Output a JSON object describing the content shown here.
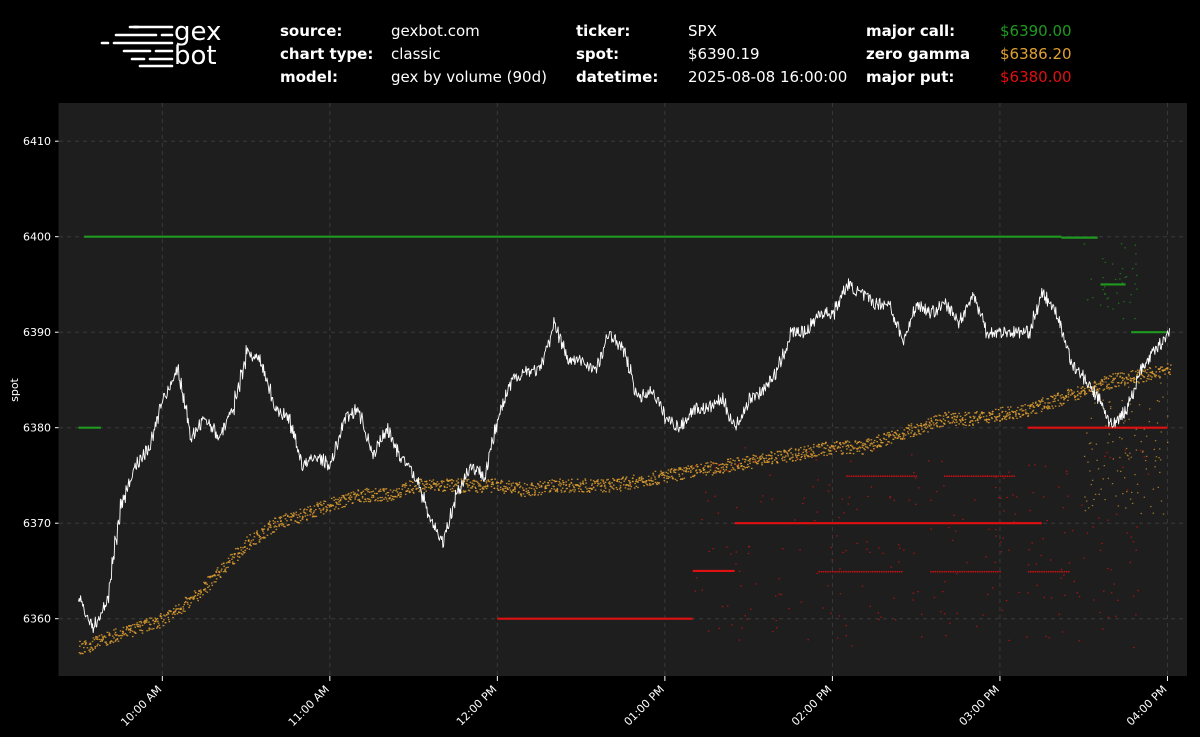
{
  "logo": {
    "line1": "gex",
    "line2": "bot"
  },
  "meta": {
    "col1": [
      {
        "key": "source:",
        "value": "gexbot.com"
      },
      {
        "key": "chart type:",
        "value": "classic"
      },
      {
        "key": "model:",
        "value": "gex by volume (90d)"
      }
    ],
    "col2": [
      {
        "key": "ticker:",
        "value": "SPX"
      },
      {
        "key": "spot:",
        "value": "$6390.19"
      },
      {
        "key": "datetime:",
        "value": "2025-08-08 16:00:00"
      }
    ],
    "col3": [
      {
        "key": "major call:",
        "value": "$6390.00",
        "color": "#1f9a1f"
      },
      {
        "key": "zero gamma",
        "value": "$6386.20",
        "color": "#e0a030"
      },
      {
        "key": "major put:",
        "value": "$6380.00",
        "color": "#e01010"
      }
    ]
  },
  "chart_data": {
    "type": "line",
    "title": "",
    "xlabel": "",
    "ylabel": "spot",
    "grid": true,
    "background": "#1e1e1e",
    "ylim": [
      6354,
      6414
    ],
    "xlim": [
      "09:30",
      "16:00"
    ],
    "yticks": [
      6360,
      6370,
      6380,
      6390,
      6400,
      6410
    ],
    "xticks": [
      "10:00 AM",
      "11:00 AM",
      "12:00 PM",
      "01:00 PM",
      "02:00 PM",
      "03:00 PM",
      "04:00 PM"
    ],
    "series": [
      {
        "kind": "spot",
        "color": "#ffffff",
        "x": [
          "09:30",
          "09:35",
          "09:40",
          "09:45",
          "09:50",
          "09:55",
          "10:00",
          "10:05",
          "10:10",
          "10:15",
          "10:20",
          "10:25",
          "10:30",
          "10:35",
          "10:40",
          "10:45",
          "10:50",
          "10:55",
          "11:00",
          "11:05",
          "11:10",
          "11:15",
          "11:20",
          "11:25",
          "11:30",
          "11:35",
          "11:40",
          "11:45",
          "11:50",
          "11:55",
          "12:00",
          "12:05",
          "12:10",
          "12:15",
          "12:20",
          "12:25",
          "12:30",
          "12:35",
          "12:40",
          "12:45",
          "12:50",
          "12:55",
          "13:00",
          "13:05",
          "13:10",
          "13:15",
          "13:20",
          "13:25",
          "13:30",
          "13:35",
          "13:40",
          "13:45",
          "13:50",
          "13:55",
          "14:00",
          "14:05",
          "14:10",
          "14:15",
          "14:20",
          "14:25",
          "14:30",
          "14:35",
          "14:40",
          "14:45",
          "14:50",
          "14:55",
          "15:00",
          "15:05",
          "15:10",
          "15:15",
          "15:20",
          "15:25",
          "15:30",
          "15:35",
          "15:40",
          "15:45",
          "15:50",
          "15:55",
          "16:00"
        ],
        "y": [
          6362,
          6359,
          6362,
          6372,
          6376,
          6378,
          6383,
          6386,
          6379,
          6381,
          6379,
          6382,
          6388,
          6387,
          6382,
          6381,
          6376,
          6377,
          6376,
          6381,
          6382,
          6377,
          6380,
          6377,
          6375,
          6371,
          6368,
          6373,
          6376,
          6375,
          6381,
          6385,
          6386,
          6386,
          6391,
          6387,
          6387,
          6386,
          6390,
          6388,
          6383,
          6384,
          6381,
          6380,
          6382,
          6382,
          6383,
          6380,
          6383,
          6384,
          6386,
          6390,
          6390,
          6392,
          6392,
          6395,
          6394,
          6393,
          6393,
          6389,
          6393,
          6392,
          6393,
          6391,
          6394,
          6390,
          6390,
          6390,
          6390,
          6394,
          6392,
          6387,
          6385,
          6383,
          6380,
          6382,
          6386,
          6388,
          6390
        ]
      },
      {
        "kind": "major call",
        "color": "#1f9a1f",
        "segments": [
          {
            "x": [
              "09:30",
              "09:38"
            ],
            "y": 6380
          },
          {
            "x": [
              "09:32",
              "15:22"
            ],
            "y": 6400
          },
          {
            "x": [
              "15:22",
              "15:35"
            ],
            "y": 6399.9
          },
          {
            "x": [
              "15:36",
              "15:45"
            ],
            "y": 6395
          },
          {
            "x": [
              "15:47",
              "16:00"
            ],
            "y": 6390
          }
        ]
      },
      {
        "kind": "zero gamma",
        "color": "#e0a030",
        "x": [
          "09:30",
          "09:40",
          "09:50",
          "10:00",
          "10:10",
          "10:20",
          "10:30",
          "10:40",
          "10:50",
          "11:00",
          "11:10",
          "11:20",
          "11:30",
          "11:40",
          "11:50",
          "12:00",
          "12:10",
          "12:20",
          "12:30",
          "12:40",
          "12:50",
          "13:00",
          "13:10",
          "13:20",
          "13:30",
          "13:40",
          "13:50",
          "14:00",
          "14:10",
          "14:20",
          "14:30",
          "14:40",
          "14:50",
          "15:00",
          "15:10",
          "15:20",
          "15:30",
          "15:40",
          "15:50",
          "16:00"
        ],
        "y": [
          6357,
          6358,
          6359,
          6360,
          6362,
          6365,
          6368,
          6370,
          6371,
          6372,
          6373,
          6373,
          6374,
          6374,
          6374,
          6374,
          6373.5,
          6374,
          6374,
          6374,
          6374.5,
          6375,
          6375.5,
          6376,
          6376.5,
          6377,
          6377.5,
          6378,
          6378,
          6379,
          6380,
          6381,
          6381,
          6381.5,
          6382,
          6383,
          6384,
          6385,
          6385.5,
          6386.2
        ]
      },
      {
        "kind": "major put",
        "color": "#e01010",
        "segments": [
          {
            "x": [
              "12:00",
              "13:10"
            ],
            "y": 6360
          },
          {
            "x": [
              "13:10",
              "13:25"
            ],
            "y": 6365
          },
          {
            "x": [
              "13:25",
              "15:15"
            ],
            "y": 6370
          },
          {
            "x": [
              "15:10",
              "16:00"
            ],
            "y": 6380
          }
        ]
      }
    ]
  }
}
